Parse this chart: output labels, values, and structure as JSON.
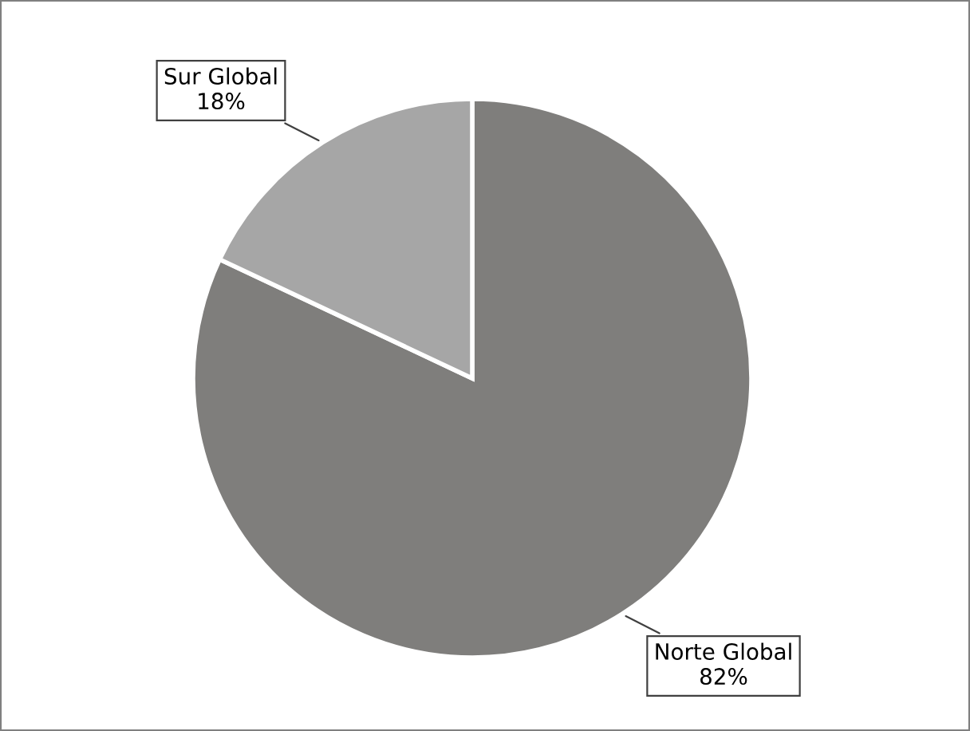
{
  "chart_data": {
    "type": "pie",
    "categories": [
      "Norte Global",
      "Sur Global"
    ],
    "values": [
      82,
      18
    ],
    "colors": [
      "#7f7e7c",
      "#a6a6a6"
    ],
    "value_labels": [
      "82%",
      "18%"
    ]
  }
}
